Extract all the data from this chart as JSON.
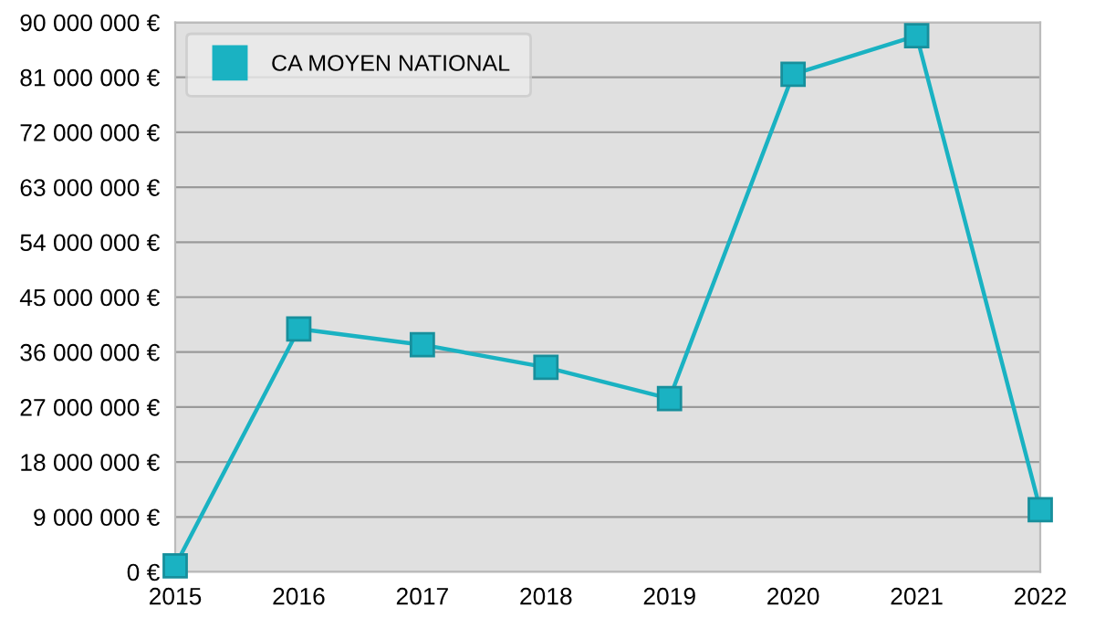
{
  "chart_data": {
    "type": "line",
    "x": [
      2015,
      2016,
      2017,
      2018,
      2019,
      2020,
      2021,
      2022
    ],
    "series": [
      {
        "name": "CA MOYEN NATIONAL",
        "color": "#1ab2c2",
        "values": [
          1000000,
          39800000,
          37200000,
          33500000,
          28400000,
          81500000,
          87800000,
          10200000
        ]
      }
    ],
    "xlim": [
      2015,
      2022
    ],
    "xticks": [
      2015,
      2016,
      2017,
      2018,
      2019,
      2020,
      2021,
      2022
    ],
    "ylim": [
      0,
      90000000
    ],
    "yticks": [
      {
        "value": 0,
        "label": "0 €"
      },
      {
        "value": 9000000,
        "label": "9 000 000 €"
      },
      {
        "value": 18000000,
        "label": "18 000 000 €"
      },
      {
        "value": 27000000,
        "label": "27 000 000 €"
      },
      {
        "value": 36000000,
        "label": "36 000 000 €"
      },
      {
        "value": 45000000,
        "label": "45 000 000 €"
      },
      {
        "value": 54000000,
        "label": "54 000 000 €"
      },
      {
        "value": 63000000,
        "label": "63 000 000 €"
      },
      {
        "value": 72000000,
        "label": "72 000 000 €"
      },
      {
        "value": 81000000,
        "label": "81 000 000 €"
      },
      {
        "value": 90000000,
        "label": "90 000 000 €"
      }
    ],
    "grid": "y",
    "legend": "top left",
    "marker": "square",
    "line_style": "solid"
  }
}
